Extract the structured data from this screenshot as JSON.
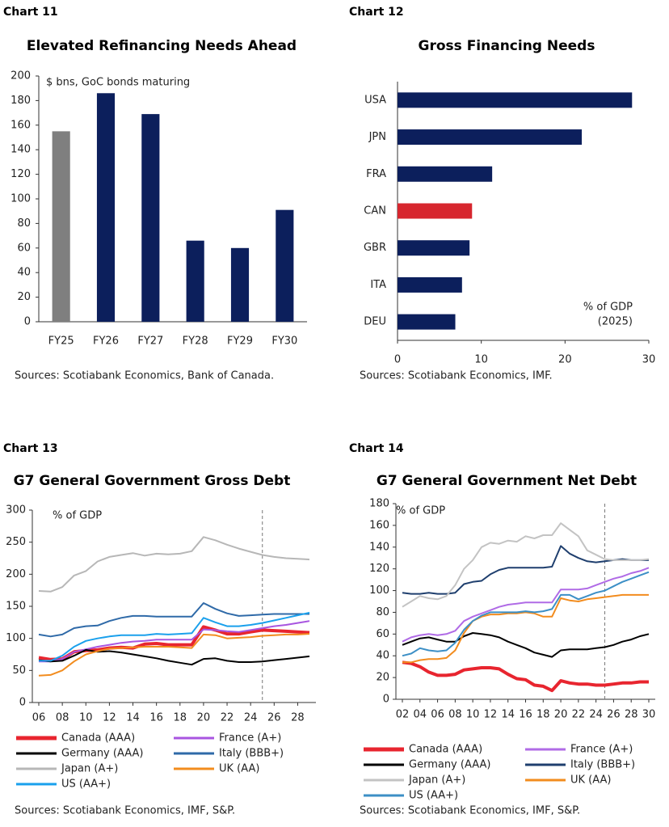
{
  "chart_data": [
    {
      "type": "bar",
      "label": "Chart 11",
      "title": "Elevated Refinancing Needs Ahead",
      "annotation": "$ bns,  GoC bonds maturing",
      "categories": [
        "FY25",
        "FY26",
        "FY27",
        "FY28",
        "FY29",
        "FY30"
      ],
      "values": [
        155,
        186,
        169,
        66,
        60,
        91
      ],
      "colors": [
        "#7f7f7f",
        "#0c1f5c",
        "#0c1f5c",
        "#0c1f5c",
        "#0c1f5c",
        "#0c1f5c"
      ],
      "ylim": [
        0,
        200
      ],
      "yticks": [
        0,
        20,
        40,
        60,
        80,
        100,
        120,
        140,
        160,
        180,
        200
      ],
      "source": "Sources: Scotiabank Economics, Bank of Canada."
    },
    {
      "type": "hbar",
      "label": "Chart 12",
      "title": "Gross Financing Needs",
      "annotation": [
        "% of GDP",
        "(2025)"
      ],
      "categories": [
        "USA",
        "JPN",
        "FRA",
        "CAN",
        "GBR",
        "ITA",
        "DEU"
      ],
      "values": [
        28,
        22,
        11.3,
        8.9,
        8.6,
        7.7,
        6.9
      ],
      "colors": [
        "#0c1f5c",
        "#0c1f5c",
        "#0c1f5c",
        "#d7262e",
        "#0c1f5c",
        "#0c1f5c",
        "#0c1f5c"
      ],
      "xlim": [
        0,
        30
      ],
      "xticks": [
        0,
        10,
        20,
        30
      ],
      "source": "Sources: Scotiabank Economics, IMF."
    },
    {
      "type": "line",
      "label": "Chart 13",
      "title": "G7 General Government Gross Debt",
      "annotation": "% of GDP",
      "x": [
        6,
        7,
        8,
        9,
        10,
        11,
        12,
        13,
        14,
        15,
        16,
        17,
        18,
        19,
        20,
        21,
        22,
        23,
        24,
        25,
        26,
        27,
        28,
        29
      ],
      "xlim": [
        6,
        29
      ],
      "xticks": [
        {
          "value": 6,
          "label": "06"
        },
        {
          "value": 8,
          "label": "08"
        },
        10,
        12,
        14,
        16,
        18,
        20,
        22,
        24,
        26,
        28
      ],
      "ylim": [
        0,
        300
      ],
      "yticks": [
        0,
        50,
        100,
        150,
        200,
        250,
        300
      ],
      "vline": 25,
      "series": [
        {
          "name": "Canada (AAA)",
          "color": "#e8252f",
          "width": 4,
          "values": [
            70,
            67,
            68,
            79,
            81,
            82,
            85,
            86,
            85,
            91,
            92,
            90,
            90,
            90,
            118,
            113,
            107,
            107,
            110,
            113,
            112,
            111,
            110,
            109
          ]
        },
        {
          "name": "France (A+)",
          "color": "#a855e0",
          "width": 2,
          "values": [
            64,
            64,
            68,
            79,
            83,
            87,
            90,
            93,
            95,
            96,
            98,
            98,
            98,
            98,
            114,
            113,
            111,
            110,
            113,
            116,
            119,
            121,
            124,
            127
          ]
        },
        {
          "name": "Germany (AAA)",
          "color": "#000000",
          "width": 2,
          "values": [
            66,
            64,
            65,
            73,
            82,
            79,
            80,
            78,
            75,
            72,
            69,
            65,
            62,
            59,
            68,
            69,
            65,
            63,
            63,
            64,
            66,
            68,
            70,
            72
          ]
        },
        {
          "name": "Italy (BBB+)",
          "color": "#2f6aa8",
          "width": 2,
          "values": [
            106,
            103,
            106,
            116,
            119,
            120,
            127,
            132,
            135,
            135,
            134,
            134,
            134,
            134,
            155,
            146,
            139,
            135,
            136,
            137,
            138,
            138,
            138,
            138
          ]
        },
        {
          "name": "Japan (A+)",
          "color": "#b7b7b7",
          "width": 2,
          "values": [
            174,
            173,
            180,
            198,
            205,
            220,
            227,
            230,
            233,
            229,
            232,
            231,
            232,
            236,
            258,
            253,
            246,
            240,
            235,
            230,
            227,
            225,
            224,
            223
          ]
        },
        {
          "name": "UK (AA)",
          "color": "#f28c1e",
          "width": 2,
          "values": [
            42,
            43,
            50,
            64,
            75,
            80,
            84,
            85,
            86,
            87,
            87,
            87,
            86,
            85,
            106,
            105,
            100,
            101,
            102,
            104,
            105,
            106,
            106,
            107
          ]
        },
        {
          "name": "US (AA+)",
          "color": "#1aa0ec",
          "width": 2,
          "values": [
            65,
            65,
            73,
            87,
            96,
            100,
            103,
            105,
            105,
            105,
            107,
            106,
            107,
            108,
            132,
            125,
            119,
            119,
            121,
            124,
            128,
            132,
            136,
            140
          ]
        }
      ],
      "source": "Sources: Scotiabank Economics, IMF, S&P."
    },
    {
      "type": "line",
      "label": "Chart 14",
      "title": "G7 General Government Net Debt",
      "annotation": "% of GDP",
      "x": [
        2,
        3,
        4,
        5,
        6,
        7,
        8,
        9,
        10,
        11,
        12,
        13,
        14,
        15,
        16,
        17,
        18,
        19,
        20,
        21,
        22,
        23,
        24,
        25,
        26,
        27,
        28,
        29,
        30
      ],
      "xlim": [
        2,
        30
      ],
      "xticks": [
        {
          "value": 2,
          "label": "02"
        },
        {
          "value": 4,
          "label": "04"
        },
        {
          "value": 6,
          "label": "06"
        },
        {
          "value": 8,
          "label": "08"
        },
        10,
        12,
        14,
        16,
        18,
        20,
        22,
        24,
        26,
        28,
        30
      ],
      "ylim": [
        0,
        180
      ],
      "yticks": [
        0,
        20,
        40,
        60,
        80,
        100,
        120,
        140,
        160,
        180
      ],
      "vline": 25,
      "series": [
        {
          "name": "Canada (AAA)",
          "color": "#e8252f",
          "width": 4,
          "values": [
            34,
            33,
            30,
            25,
            22,
            22,
            23,
            27,
            28,
            29,
            29,
            28,
            23,
            19,
            18,
            13,
            12,
            8,
            17,
            15,
            14,
            14,
            13,
            13,
            14,
            15,
            15,
            16,
            16
          ]
        },
        {
          "name": "France (A+)",
          "color": "#b06be6",
          "width": 2,
          "values": [
            53,
            57,
            59,
            60,
            59,
            60,
            63,
            72,
            76,
            79,
            82,
            85,
            87,
            88,
            89,
            89,
            89,
            89,
            101,
            101,
            101,
            102,
            105,
            108,
            111,
            113,
            116,
            118,
            121
          ]
        },
        {
          "name": "Germany (AAA)",
          "color": "#000000",
          "width": 2,
          "values": [
            50,
            53,
            56,
            57,
            55,
            53,
            53,
            58,
            61,
            60,
            59,
            57,
            53,
            50,
            47,
            43,
            41,
            39,
            45,
            46,
            46,
            46,
            47,
            48,
            50,
            53,
            55,
            58,
            60
          ]
        },
        {
          "name": "Italy (BBB+)",
          "color": "#1f3f6e",
          "width": 2,
          "values": [
            98,
            97,
            97,
            98,
            97,
            97,
            98,
            106,
            108,
            109,
            115,
            119,
            121,
            121,
            121,
            121,
            121,
            122,
            141,
            134,
            130,
            127,
            126,
            127,
            128,
            129,
            128,
            128,
            128
          ]
        },
        {
          "name": "Japan (A+)",
          "color": "#c3c3c3",
          "width": 2,
          "values": [
            85,
            90,
            95,
            93,
            92,
            95,
            105,
            120,
            128,
            140,
            144,
            143,
            146,
            145,
            150,
            148,
            151,
            151,
            162,
            156,
            150,
            137,
            133,
            129,
            128,
            128,
            128,
            128,
            129
          ]
        },
        {
          "name": "UK (AA)",
          "color": "#f28c1e",
          "width": 2,
          "values": [
            34,
            34,
            36,
            37,
            37,
            38,
            45,
            61,
            72,
            76,
            78,
            78,
            79,
            79,
            80,
            79,
            76,
            76,
            93,
            91,
            90,
            92,
            93,
            94,
            95,
            96,
            96,
            96,
            96
          ]
        },
        {
          "name": "US (AA+)",
          "color": "#3c8fc6",
          "width": 2,
          "values": [
            40,
            42,
            47,
            45,
            44,
            45,
            52,
            64,
            72,
            77,
            80,
            80,
            80,
            80,
            81,
            80,
            81,
            83,
            96,
            96,
            92,
            95,
            98,
            100,
            104,
            108,
            111,
            114,
            117
          ]
        }
      ],
      "source": "Sources: Scotiabank Economics, IMF, S&P."
    }
  ]
}
